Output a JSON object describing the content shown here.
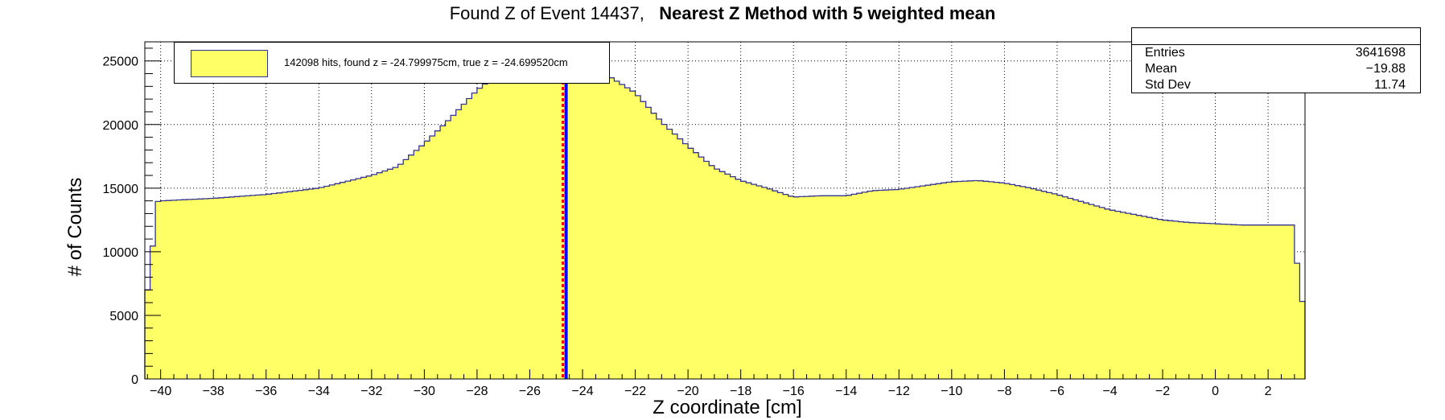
{
  "title": {
    "main": "Found Z of Event 14437,",
    "method": "Nearest Z Method with 5 weighted mean"
  },
  "stats": {
    "entries_label": "Entries",
    "entries_value": "3641698",
    "mean_label": "Mean",
    "mean_value": "−19.88",
    "stddev_label": "Std Dev",
    "stddev_value": "11.74"
  },
  "legend": {
    "entry": "142098 hits, found z = -24.799975cm, true z = -24.699520cm"
  },
  "colors": {
    "fill": "#ffff66",
    "line": "#33358f",
    "found_z": "#0000ff",
    "true_z": "#ff0000"
  },
  "chart_data": {
    "type": "bar",
    "title": "Found Z of Event 14437, Nearest Z Method with 5 weighted mean",
    "xlabel": "Z coordinate [cm]",
    "ylabel": "# of Counts",
    "xlim": [
      -40.6,
      3.4
    ],
    "ylim": [
      0,
      26500
    ],
    "grid": true,
    "x_ticks": [
      -40,
      -38,
      -36,
      -34,
      -32,
      -30,
      -28,
      -26,
      -24,
      -22,
      -20,
      -18,
      -16,
      -14,
      -12,
      -10,
      -8,
      -6,
      -4,
      -2,
      0,
      2
    ],
    "y_ticks": [
      0,
      5000,
      10000,
      15000,
      20000,
      25000
    ],
    "profile_x": [
      -40.6,
      -40.4,
      -40.2,
      -40.0,
      -38.0,
      -36.0,
      -34.0,
      -32.0,
      -31.0,
      -30.0,
      -29.0,
      -28.0,
      -27.0,
      -26.0,
      -25.0,
      -24.8,
      -24.6,
      -24.0,
      -23.0,
      -22.0,
      -21.0,
      -20.0,
      -19.0,
      -18.0,
      -17.0,
      -16.0,
      -15.0,
      -14.0,
      -13.0,
      -12.0,
      -11.0,
      -10.0,
      -9.0,
      -8.0,
      -7.0,
      -6.0,
      -5.0,
      -4.0,
      -3.0,
      -2.0,
      -1.0,
      0.0,
      1.0,
      2.0,
      3.0,
      3.2,
      3.4
    ],
    "profile_y": [
      7000,
      7000,
      13900,
      14000,
      14200,
      14500,
      15000,
      16000,
      16700,
      18500,
      20500,
      22700,
      24300,
      25700,
      26300,
      26400,
      25800,
      24800,
      23800,
      22500,
      20200,
      18300,
      16600,
      15600,
      15000,
      14300,
      14400,
      14400,
      14800,
      14900,
      15200,
      15500,
      15600,
      15400,
      15000,
      14500,
      13900,
      13300,
      12900,
      12500,
      12300,
      12200,
      12100,
      12100,
      12100,
      6100,
      6100
    ],
    "bin_width": 0.2,
    "found_z": -24.799975,
    "true_z": -24.69952,
    "series": [
      {
        "name": "142098 hits, found z = -24.799975cm, true z = -24.699520cm"
      }
    ]
  }
}
